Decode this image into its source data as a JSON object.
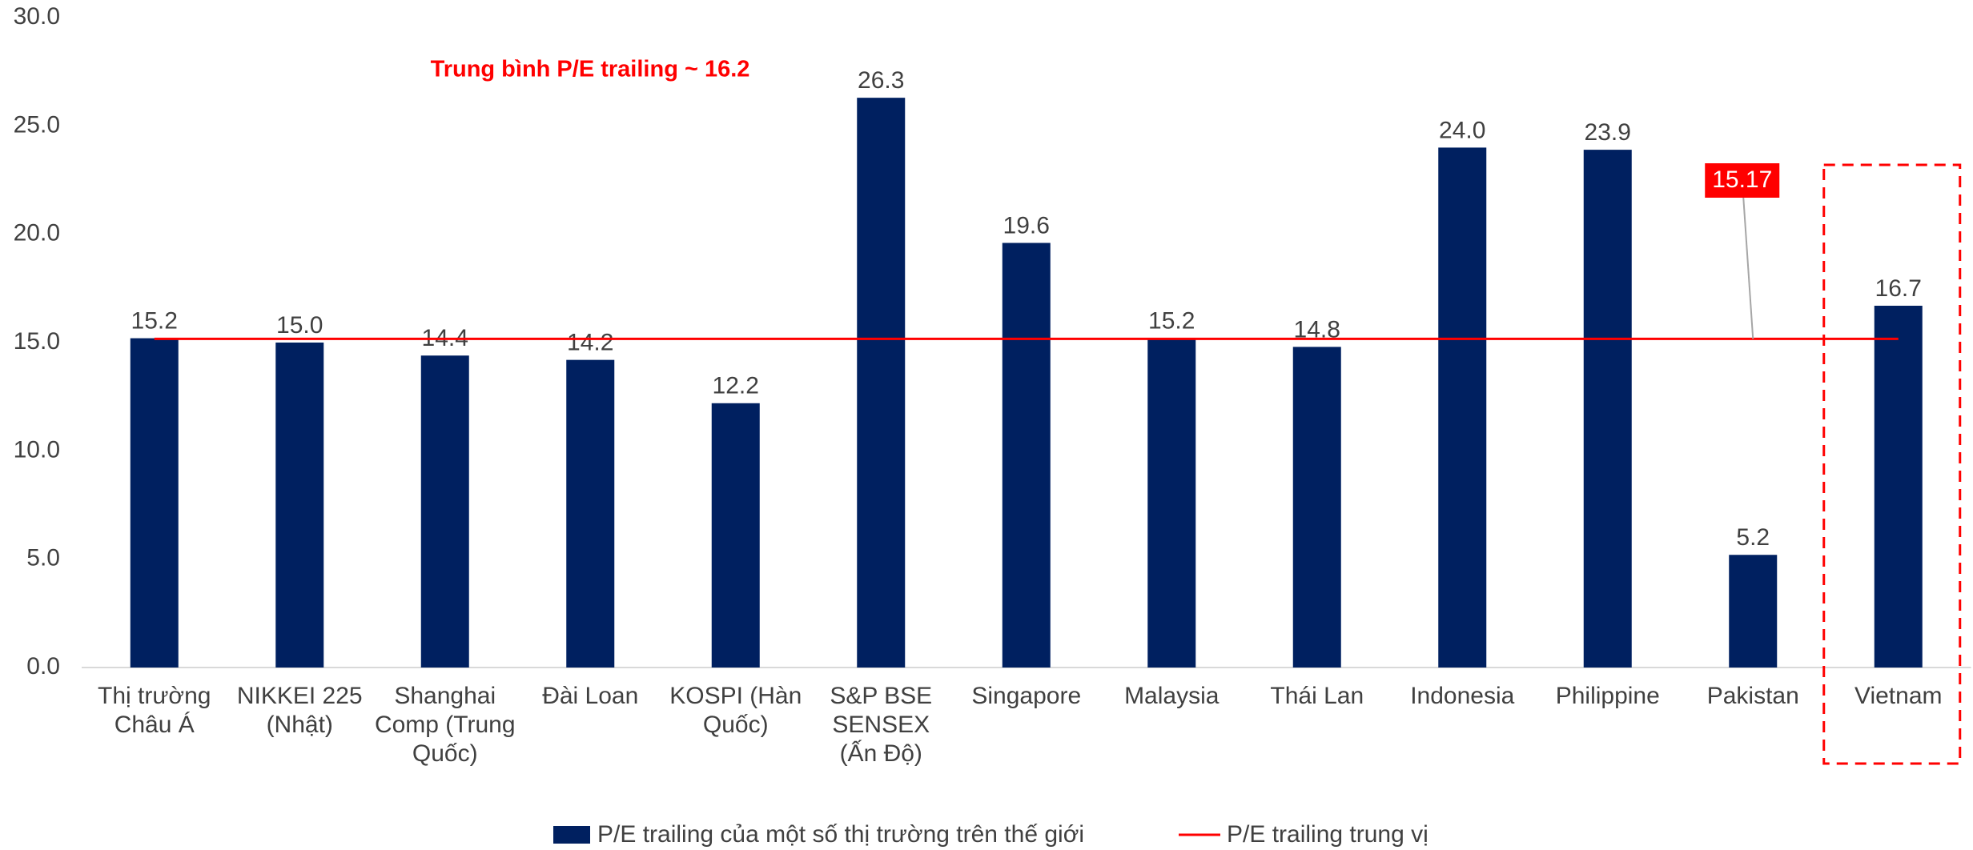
{
  "chart_data": {
    "type": "bar",
    "annotation": "Trung bình P/E trailing ~ 16.2",
    "categories": [
      "Thị trường Châu Á",
      "NIKKEI 225 (Nhật)",
      "Shanghai Comp (Trung Quốc)",
      "Đài Loan",
      "KOSPI (Hàn Quốc)",
      "S&P BSE SENSEX (Ấn Độ)",
      "Singapore",
      "Malaysia",
      "Thái Lan",
      "Indonesia",
      "Philippine",
      "Pakistan",
      "Vietnam"
    ],
    "series": [
      {
        "name": "P/E trailing của một số thị trường trên thế giới",
        "type": "bar",
        "color": "#002060",
        "values": [
          15.2,
          15.0,
          14.4,
          14.2,
          12.2,
          26.3,
          19.6,
          15.2,
          14.8,
          24.0,
          23.9,
          5.2,
          16.7
        ],
        "value_labels": [
          "15.2",
          "15.0",
          "14.4",
          "14.2",
          "12.2",
          "26.3",
          "19.6",
          "15.2",
          "14.8",
          "24.0",
          "23.9",
          "5.2",
          "16.7"
        ]
      },
      {
        "name": "P/E trailing trung vị",
        "type": "line",
        "color": "#ff0000",
        "values": [
          15.17,
          15.17,
          15.17,
          15.17,
          15.17,
          15.17,
          15.17,
          15.17,
          15.17,
          15.17,
          15.17,
          15.17,
          15.17
        ],
        "labeled_point": 11
      }
    ],
    "ylim": [
      0,
      30
    ],
    "yticks": [
      {
        "value": 0,
        "label": "0.0"
      },
      {
        "value": 5,
        "label": "5.0"
      },
      {
        "value": 10,
        "label": "10.0"
      },
      {
        "value": 15,
        "label": "15.0"
      },
      {
        "value": 20,
        "label": "20.0"
      },
      {
        "value": 25,
        "label": "25.0"
      },
      {
        "value": 30,
        "label": "30.0"
      }
    ],
    "highlight_category": 12
  }
}
